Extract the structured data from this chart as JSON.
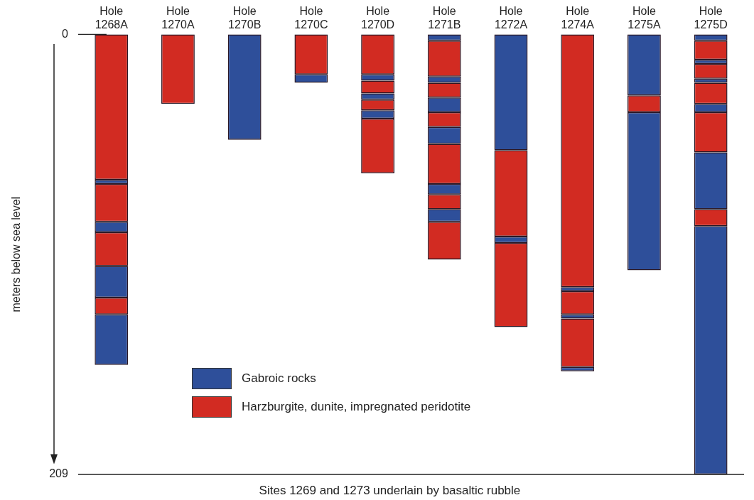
{
  "chart_data": {
    "type": "bar",
    "ylabel": "meters below sea level",
    "annotations": [
      "Sites 1269 and 1273 underlain by basaltic rubble"
    ],
    "categories": [
      "Hole 1268A",
      "Hole 1270A",
      "Hole 1270B",
      "Hole 1270C",
      "Hole 1270D",
      "Hole 1271B",
      "Hole 1272A",
      "Hole 1274A",
      "Hole 1275A",
      "Hole 1275D"
    ],
    "ylim": [
      209,
      0
    ],
    "yticks": [
      0,
      209
    ],
    "grid": false,
    "legend": "bottom left",
    "series": [
      {
        "name": "Gabroic rocks",
        "color": "#2e4f9a",
        "base": [
          69,
          null,
          0,
          19,
          19,
          0,
          0,
          120,
          0,
          0
        ],
        "values": [
          2,
          null,
          50,
          4,
          3,
          3,
          55,
          2,
          29,
          3
        ]
      },
      {
        "color": "#2e4f9a",
        "base": [
          89,
          null,
          null,
          null,
          28,
          20,
          96,
          133,
          37,
          12
        ],
        "values": [
          5,
          null,
          null,
          null,
          3,
          3,
          3,
          2,
          75,
          2
        ]
      },
      {
        "color": "#2e4f9a",
        "base": [
          110,
          null,
          null,
          null,
          36,
          30,
          null,
          158,
          null,
          21
        ],
        "values": [
          15,
          null,
          null,
          null,
          4,
          7,
          null,
          2,
          null,
          2
        ]
      },
      {
        "color": "#2e4f9a",
        "base": [
          133,
          null,
          null,
          null,
          null,
          44,
          null,
          null,
          null,
          33
        ],
        "values": [
          24,
          null,
          null,
          null,
          null,
          8,
          null,
          null,
          null,
          4
        ]
      },
      {
        "color": "#2e4f9a",
        "base": [
          null,
          null,
          null,
          null,
          null,
          71,
          null,
          null,
          null,
          56
        ],
        "values": [
          null,
          null,
          null,
          null,
          null,
          5,
          null,
          null,
          null,
          27
        ]
      },
      {
        "color": "#2e4f9a",
        "base": [
          null,
          null,
          null,
          null,
          null,
          83,
          null,
          null,
          null,
          91
        ],
        "values": [
          null,
          null,
          null,
          null,
          null,
          6,
          null,
          null,
          null,
          118
        ]
      },
      {
        "name": "Harzburgite, dunite, impregnated peridotite",
        "color": "#d22b22",
        "base": [
          0,
          0,
          null,
          0,
          0,
          3,
          55,
          0,
          29,
          3
        ],
        "values": [
          69,
          33,
          null,
          19,
          19,
          17,
          41,
          120,
          8,
          9
        ]
      },
      {
        "color": "#d22b22",
        "base": [
          71,
          null,
          null,
          null,
          22,
          23,
          99,
          122,
          null,
          14
        ],
        "values": [
          18,
          null,
          null,
          null,
          6,
          7,
          40,
          11,
          null,
          7
        ]
      },
      {
        "color": "#d22b22",
        "base": [
          94,
          null,
          null,
          null,
          31,
          37,
          null,
          135,
          null,
          23
        ],
        "values": [
          16,
          null,
          null,
          null,
          5,
          7,
          null,
          23,
          null,
          10
        ]
      },
      {
        "color": "#d22b22",
        "base": [
          125,
          null,
          null,
          null,
          40,
          52,
          null,
          null,
          null,
          37
        ],
        "values": [
          8,
          null,
          null,
          null,
          26,
          19,
          null,
          null,
          null,
          19
        ]
      },
      {
        "color": "#d22b22",
        "base": [
          null,
          null,
          null,
          null,
          null,
          76,
          null,
          null,
          null,
          83
        ],
        "values": [
          null,
          null,
          null,
          null,
          null,
          7,
          null,
          null,
          null,
          8
        ]
      },
      {
        "color": "#d22b22",
        "base": [
          null,
          null,
          null,
          null,
          null,
          89,
          null,
          null,
          null,
          null
        ],
        "values": [
          null,
          null,
          null,
          null,
          null,
          18,
          null,
          null,
          null,
          null
        ]
      }
    ]
  }
}
